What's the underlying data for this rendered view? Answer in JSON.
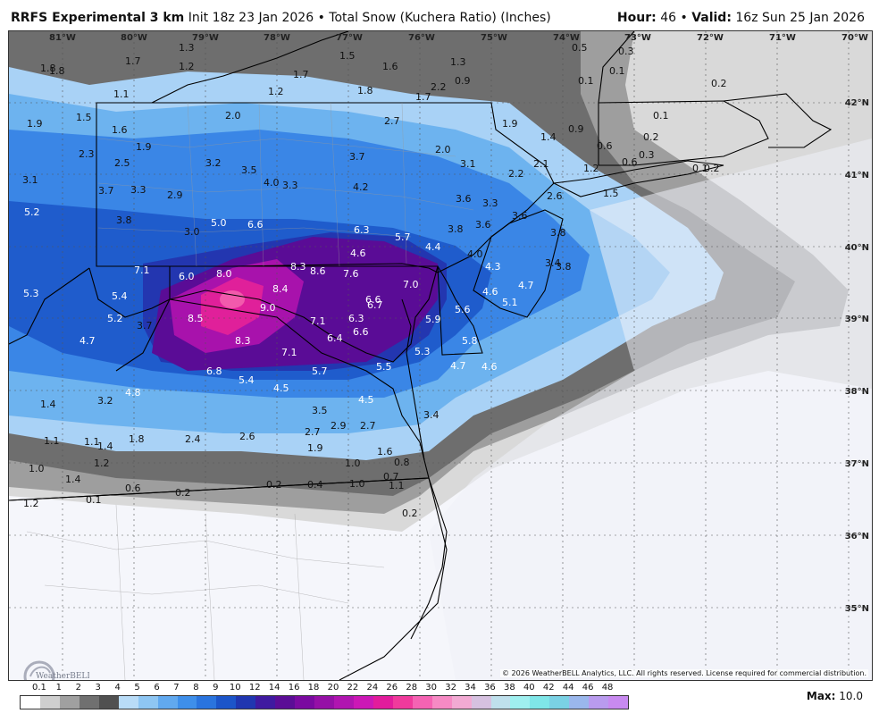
{
  "header": {
    "model_name": "RRFS Experimental 3 km",
    "init": "Init 18z 23 Jan 2026",
    "bullet": "•",
    "product": "Total Snow (Kuchera Ratio) (Inches)",
    "hour_label": "Hour:",
    "hour_value": "46",
    "valid_label": "Valid:",
    "valid_value": "16z Sun 25 Jan 2026"
  },
  "map": {
    "lon_labels": [
      "81°W",
      "80°W",
      "79°W",
      "78°W",
      "77°W",
      "76°W",
      "75°W",
      "74°W",
      "73°W",
      "72°W",
      "71°W",
      "70°W"
    ],
    "lat_labels": [
      "42°N",
      "41°N",
      "40°N",
      "39°N",
      "38°N",
      "37°N",
      "36°N",
      "35°N"
    ],
    "values": [
      "1.8",
      "1.7",
      "1.3",
      "1.2",
      "1.2",
      "1.7",
      "1.5",
      "1.6",
      "1.3",
      "0.5",
      "0.3",
      "0.1",
      "1.1",
      "1.8",
      "1.8",
      "1.7",
      "2.2",
      "0.9",
      "0.1",
      "0.2",
      "1.9",
      "1.5",
      "1.6",
      "2.0",
      "2.7",
      "1.9",
      "0.9",
      "1.4",
      "0.6",
      "0.2",
      "0.1",
      "2.3",
      "2.5",
      "1.9",
      "3.2",
      "3.5",
      "3.7",
      "2.0",
      "3.1",
      "2.2",
      "2.1",
      "1.2",
      "0.6",
      "0.3",
      "0.2",
      "3.1",
      "3.7",
      "3.3",
      "4.0",
      "3.3",
      "4.2",
      "3.6",
      "2.6",
      "1.5",
      "0.1",
      "5.2",
      "3.8",
      "2.9",
      "3.0",
      "5.0",
      "6.6",
      "6.3",
      "5.7",
      "4.4",
      "3.8",
      "3.6",
      "3.3",
      "3.6",
      "3.8",
      "7.1",
      "4.6",
      "4.0",
      "3.4",
      "3.8",
      "6.0",
      "8.0",
      "8.3",
      "8.6",
      "7.6",
      "4.3",
      "4.7",
      "5.3",
      "8.4",
      "7.0",
      "4.6",
      "5.1",
      "5.4",
      "9.0",
      "6.6",
      "6.7",
      "5.6",
      "5.2",
      "8.5",
      "7.1",
      "6.3",
      "5.9",
      "3.7",
      "6.6",
      "4.7",
      "8.3",
      "6.4",
      "5.3",
      "5.8",
      "7.1",
      "5.7",
      "5.5",
      "4.7",
      "4.6",
      "6.8",
      "5.4",
      "4.5",
      "4.8",
      "3.2",
      "4.5",
      "1.4",
      "3.5",
      "3.4",
      "2.9",
      "2.7",
      "2.7",
      "1.1",
      "1.4",
      "1.8",
      "2.4",
      "2.6",
      "1.9",
      "1.6",
      "1.1",
      "1.0",
      "1.2",
      "1.4",
      "1.0",
      "0.8",
      "0.7",
      "1.1",
      "0.6",
      "0.2",
      "0.2",
      "0.4",
      "1.0",
      "1.2",
      "0.1",
      "0.2"
    ],
    "copyright": "© 2026 WeatherBELL Analytics, LLC. All rights reserved. License required for commercial distribution.",
    "logo_text": "WeatherBELL"
  },
  "legend": {
    "ticks": [
      "0.1",
      "1",
      "2",
      "3",
      "4",
      "5",
      "6",
      "7",
      "8",
      "9",
      "10",
      "12",
      "14",
      "16",
      "18",
      "20",
      "22",
      "24",
      "26",
      "28",
      "30",
      "32",
      "34",
      "36",
      "38",
      "40",
      "42",
      "44",
      "46",
      "48"
    ],
    "colors": [
      "#ffffff",
      "#cfcfcf",
      "#a0a0a0",
      "#707070",
      "#505050",
      "#b9dcf7",
      "#8ec6f3",
      "#61a9ef",
      "#3e8fea",
      "#2a74de",
      "#1c55c9",
      "#2036b0",
      "#3f1aa0",
      "#5b0d96",
      "#7a0aa0",
      "#9510a6",
      "#b015b0",
      "#cc18b6",
      "#e21c9c",
      "#f03a9c",
      "#f563b3",
      "#f68ac4",
      "#f2aad3",
      "#d6c1e0",
      "#bfe0ec",
      "#9fefef",
      "#7fe6e8",
      "#7ad1e4",
      "#9ab7ec",
      "#b99bee",
      "#c88af0"
    ],
    "max_label": "Max:",
    "max_value": "10.0"
  }
}
